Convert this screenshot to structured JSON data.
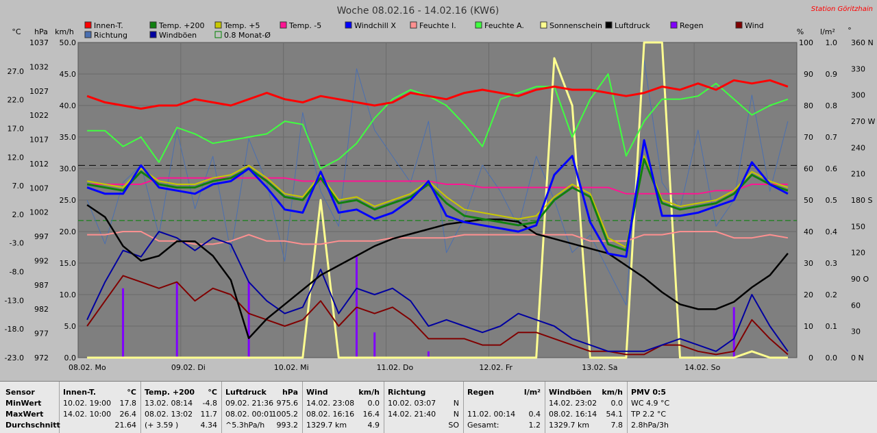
{
  "title": "Woche 08.02.16 - 14.02.16 (KW6)",
  "station": "Station Göritzhain",
  "unit_headers": {
    "c": "°C",
    "hpa": "hPa",
    "kmh": "km/h",
    "pct": "%",
    "lm2": "l/m²",
    "deg": "°"
  },
  "legend": [
    {
      "label": "Innen-T.",
      "color": "#ff0000"
    },
    {
      "label": "Richtung",
      "color": "#4a6fb0"
    },
    {
      "label": "Temp. +200",
      "color": "#108010"
    },
    {
      "label": "Windböen",
      "color": "#0000a0"
    },
    {
      "label": "Temp. +5",
      "color": "#c8c800"
    },
    {
      "label": "0.8 Monat-Ø",
      "color": "#008000"
    },
    {
      "label": "Temp. -5",
      "color": "#ff1493"
    },
    {
      "label": "Windchill X",
      "color": "#0000ff"
    },
    {
      "label": "Feuchte I.",
      "color": "#ff9090"
    },
    {
      "label": "Feuchte A.",
      "color": "#40ff40"
    },
    {
      "label": "Sonnenschein",
      "color": "#ffff90"
    },
    {
      "label": "Luftdruck",
      "color": "#000000"
    },
    {
      "label": "Regen",
      "color": "#8000ff"
    },
    {
      "label": "Wind",
      "color": "#800000"
    }
  ],
  "chart_data": {
    "type": "line",
    "title": "Woche 08.02.16 - 14.02.16 (KW6)",
    "x_ticks": [
      "08.02. Mo",
      "09.02. Di",
      "10.02. Mi",
      "11.02. Do",
      "12.02. Fr",
      "13.02. Sa",
      "14.02. So"
    ],
    "axes": {
      "temp_c": {
        "ticks": [
          "27.0",
          "22.0",
          "17.0",
          "12.0",
          "7.0",
          "2.0",
          "-3.0",
          "-8.0",
          "-13.0",
          "-18.0",
          "-23.0"
        ],
        "range": [
          -23,
          32
        ]
      },
      "pressure_hpa": {
        "ticks": [
          "1037",
          "1032",
          "1027",
          "1022",
          "1017",
          "1012",
          "1007",
          "1002",
          "997",
          "992",
          "987",
          "982",
          "977",
          "972"
        ],
        "range": [
          972,
          1037
        ]
      },
      "wind_kmh": {
        "ticks": [
          "50.0",
          "45.0",
          "40.0",
          "35.0",
          "30.0",
          "25.0",
          "20.0",
          "15.0",
          "10.0",
          "5.0",
          "0.0"
        ],
        "range": [
          0,
          50
        ]
      },
      "humidity_pct": {
        "ticks": [
          "100",
          "90",
          "80",
          "70",
          "60",
          "50",
          "40",
          "30",
          "20",
          "10",
          "0"
        ],
        "range": [
          0,
          100
        ]
      },
      "rain_lm2": {
        "ticks": [
          "1.0",
          "0.9",
          "0.8",
          "0.7",
          "0.6",
          "0.5",
          "0.4",
          "0.3",
          "0.2",
          "0.1",
          "0.0"
        ],
        "range": [
          0,
          1.0
        ]
      },
      "direction_deg": {
        "ticks": [
          "360 N",
          "330",
          "300",
          "270 W",
          "240",
          "210",
          "180 S",
          "150",
          "120",
          "90 O",
          "60",
          "30",
          "0 N"
        ],
        "range": [
          0,
          360
        ]
      }
    },
    "series": [
      {
        "name": "Innen-T.",
        "axis": "pct",
        "values": [
          83,
          81,
          80,
          79,
          80,
          80,
          82,
          81,
          80,
          82,
          84,
          82,
          81,
          83,
          82,
          81,
          80,
          81,
          84,
          83,
          82,
          84,
          85,
          84,
          83,
          85,
          86,
          85,
          85,
          84,
          83,
          84,
          86,
          85,
          87,
          85,
          88,
          87,
          88,
          86
        ]
      },
      {
        "name": "Feuchte A.",
        "axis": "pct",
        "values": [
          72,
          72,
          67,
          70,
          62,
          73,
          71,
          68,
          69,
          70,
          71,
          75,
          74,
          60,
          63,
          68,
          76,
          82,
          85,
          83,
          80,
          74,
          67,
          82,
          84,
          86,
          86,
          70,
          82,
          90,
          64,
          75,
          82,
          82,
          83,
          87,
          82,
          77,
          80,
          82
        ]
      },
      {
        "name": "Temp. +5",
        "axis": "pct",
        "values": [
          56,
          55,
          54,
          60,
          56,
          55,
          55,
          57,
          58,
          61,
          57,
          52,
          51,
          58,
          50,
          51,
          48,
          50,
          52,
          56,
          51,
          47,
          46,
          45,
          44,
          45,
          51,
          55,
          52,
          38,
          35,
          64,
          50,
          48,
          49,
          50,
          53,
          59,
          56,
          54
        ]
      },
      {
        "name": "Temp. +200",
        "axis": "pct",
        "values": [
          55,
          54,
          53,
          59,
          55,
          54,
          54,
          56,
          57,
          60,
          56,
          51,
          50,
          57,
          49,
          50,
          47,
          49,
          51,
          55,
          49,
          45,
          44,
          43,
          42,
          43,
          50,
          54,
          51,
          36,
          34,
          63,
          49,
          47,
          48,
          49,
          52,
          58,
          55,
          53
        ]
      },
      {
        "name": "Windchill X",
        "axis": "pct",
        "values": [
          54,
          52,
          52,
          61,
          54,
          53,
          52,
          55,
          56,
          60,
          54,
          47,
          46,
          59,
          46,
          47,
          44,
          46,
          50,
          56,
          45,
          43,
          42,
          41,
          40,
          42,
          58,
          64,
          43,
          33,
          32,
          69,
          45,
          45,
          46,
          48,
          50,
          62,
          55,
          52
        ]
      },
      {
        "name": "Temp. -5",
        "axis": "pct",
        "values": [
          55,
          55,
          55,
          55,
          57,
          57,
          57,
          57,
          57,
          57,
          57,
          57,
          56,
          56,
          56,
          56,
          56,
          56,
          56,
          56,
          55,
          55,
          54,
          54,
          54,
          54,
          54,
          54,
          54,
          54,
          52,
          52,
          52,
          52,
          52,
          53,
          53,
          55,
          55,
          55
        ]
      },
      {
        "name": "Feuchte I.",
        "axis": "pct",
        "values": [
          39,
          39,
          40,
          40,
          37,
          37,
          36,
          36,
          37,
          39,
          37,
          37,
          36,
          36,
          37,
          37,
          37,
          38,
          38,
          38,
          38,
          39,
          39,
          39,
          39,
          39,
          39,
          39,
          37,
          37,
          37,
          39,
          39,
          40,
          40,
          40,
          38,
          38,
          39,
          38
        ]
      },
      {
        "name": "Luftdruck",
        "axis": "hpa",
        "values": [
          1003.5,
          1001,
          995,
          992,
          993,
          996,
          996,
          993,
          988,
          976,
          980,
          983,
          986,
          989,
          991,
          993,
          995,
          996.5,
          997.5,
          998.5,
          999.5,
          1000,
          1000.5,
          1000.5,
          1000,
          997.5,
          996.5,
          995.5,
          994.5,
          993.5,
          991,
          988.5,
          985.5,
          983,
          982,
          982,
          983.5,
          986.5,
          989,
          993.5
        ]
      },
      {
        "name": "Windböen",
        "axis": "kmh",
        "values": [
          6,
          12,
          17,
          16,
          20,
          19,
          17,
          19,
          18,
          12,
          9,
          7,
          8,
          14,
          7,
          11,
          10,
          11,
          9,
          5,
          6,
          5,
          4,
          5,
          7,
          6,
          5,
          3,
          2,
          1,
          1,
          1,
          2,
          3,
          2,
          1,
          3,
          10,
          5,
          1
        ]
      },
      {
        "name": "Wind",
        "axis": "kmh",
        "values": [
          5,
          9,
          13,
          12,
          11,
          12,
          9,
          11,
          10,
          7,
          6,
          5,
          6,
          9,
          5,
          8,
          7,
          8,
          6,
          3,
          3,
          3,
          2,
          2,
          4,
          4,
          3,
          2,
          1,
          1,
          0.5,
          0.5,
          2,
          2,
          1,
          0.5,
          1,
          6,
          3,
          0.5
        ]
      },
      {
        "name": "Richtung",
        "axis": "deg",
        "values": [
          180,
          130,
          200,
          220,
          140,
          260,
          170,
          230,
          120,
          250,
          200,
          110,
          280,
          190,
          150,
          330,
          260,
          230,
          200,
          270,
          120,
          160,
          220,
          190,
          150,
          230,
          180,
          120,
          140,
          100,
          60,
          340,
          200,
          170,
          260,
          150,
          180,
          300,
          190,
          270
        ]
      },
      {
        "name": "Sonnenschein",
        "axis": "pct",
        "values": [
          0,
          0,
          0,
          0,
          0,
          0,
          0,
          0,
          0,
          0,
          0,
          0,
          0,
          50,
          0,
          0,
          0,
          0,
          0,
          0,
          0,
          0,
          0,
          0,
          0,
          0,
          95,
          80,
          0,
          0,
          0,
          100,
          100,
          0,
          0,
          0,
          0,
          2,
          0,
          0
        ]
      }
    ],
    "rain_bars_lm2": [
      0,
      0,
      0.22,
      0,
      0,
      0.24,
      0,
      0,
      0,
      0.24,
      0,
      0,
      0,
      0,
      0,
      0.32,
      0.08,
      0,
      0,
      0.02,
      0,
      0,
      0,
      0,
      0,
      0,
      0,
      0,
      0,
      0,
      0,
      0,
      0,
      0,
      0,
      0,
      0.16,
      0,
      0,
      0
    ],
    "monthly_avg_pct": 61,
    "monthly_avg_line_pct": 43.5
  },
  "stats": {
    "sensor": {
      "h": "Sensor",
      "min": "MinWert",
      "max": "MaxWert",
      "avg": "Durchschnitt"
    },
    "cols": [
      {
        "h": "Innen-T.",
        "u": "°C",
        "min_t": "10.02.  19:00",
        "min_v": "17.8",
        "max_t": "14.02.  10:00",
        "max_v": "26.4",
        "avg_t": "",
        "avg_v": "21.64"
      },
      {
        "h": "Temp. +200",
        "u": "°C",
        "min_t": "13.02.  08:14",
        "min_v": "-4.8",
        "max_t": "08.02.  13:02",
        "max_v": "11.7",
        "avg_t": "(+ 3.59 )",
        "avg_v": "4.34"
      },
      {
        "h": "Luftdruck",
        "u": "hPa",
        "min_t": "09.02.  21:36",
        "min_v": "975.6",
        "max_t": "08.02.  00:01",
        "max_v": "1005.2",
        "avg_t": "^5.3hPa/h",
        "avg_v": "993.2"
      },
      {
        "h": "Wind",
        "u": "km/h",
        "min_t": "14.02.  23:08",
        "min_v": "0.0",
        "max_t": "08.02.  16:16",
        "max_v": "16.4",
        "avg_t": "1329.7 km",
        "avg_v": "4.9"
      },
      {
        "h": "Richtung",
        "u": "",
        "min_t": "10.02.  03:07",
        "min_v": "N",
        "max_t": "14.02.  21:40",
        "max_v": "N",
        "avg_t": "",
        "avg_v": "SO"
      },
      {
        "h": "Regen",
        "u": "l/m²",
        "min_t": "",
        "min_v": "",
        "max_t": "11.02.  00:14",
        "max_v": "0.4",
        "avg_t": "Gesamt:",
        "avg_v": "1.2"
      },
      {
        "h": "Windböen",
        "u": "km/h",
        "min_t": "14.02.  23:02",
        "min_v": "0.0",
        "max_t": "08.02.  16:14",
        "max_v": "54.1",
        "avg_t": "1329.7 km",
        "avg_v": "7.8"
      }
    ],
    "pmv": {
      "h": "PMV 0:5",
      "l1": "WC 4.9 °C",
      "l2": "TP 2.2 °C",
      "l3": "2.8hPa/3h"
    }
  }
}
